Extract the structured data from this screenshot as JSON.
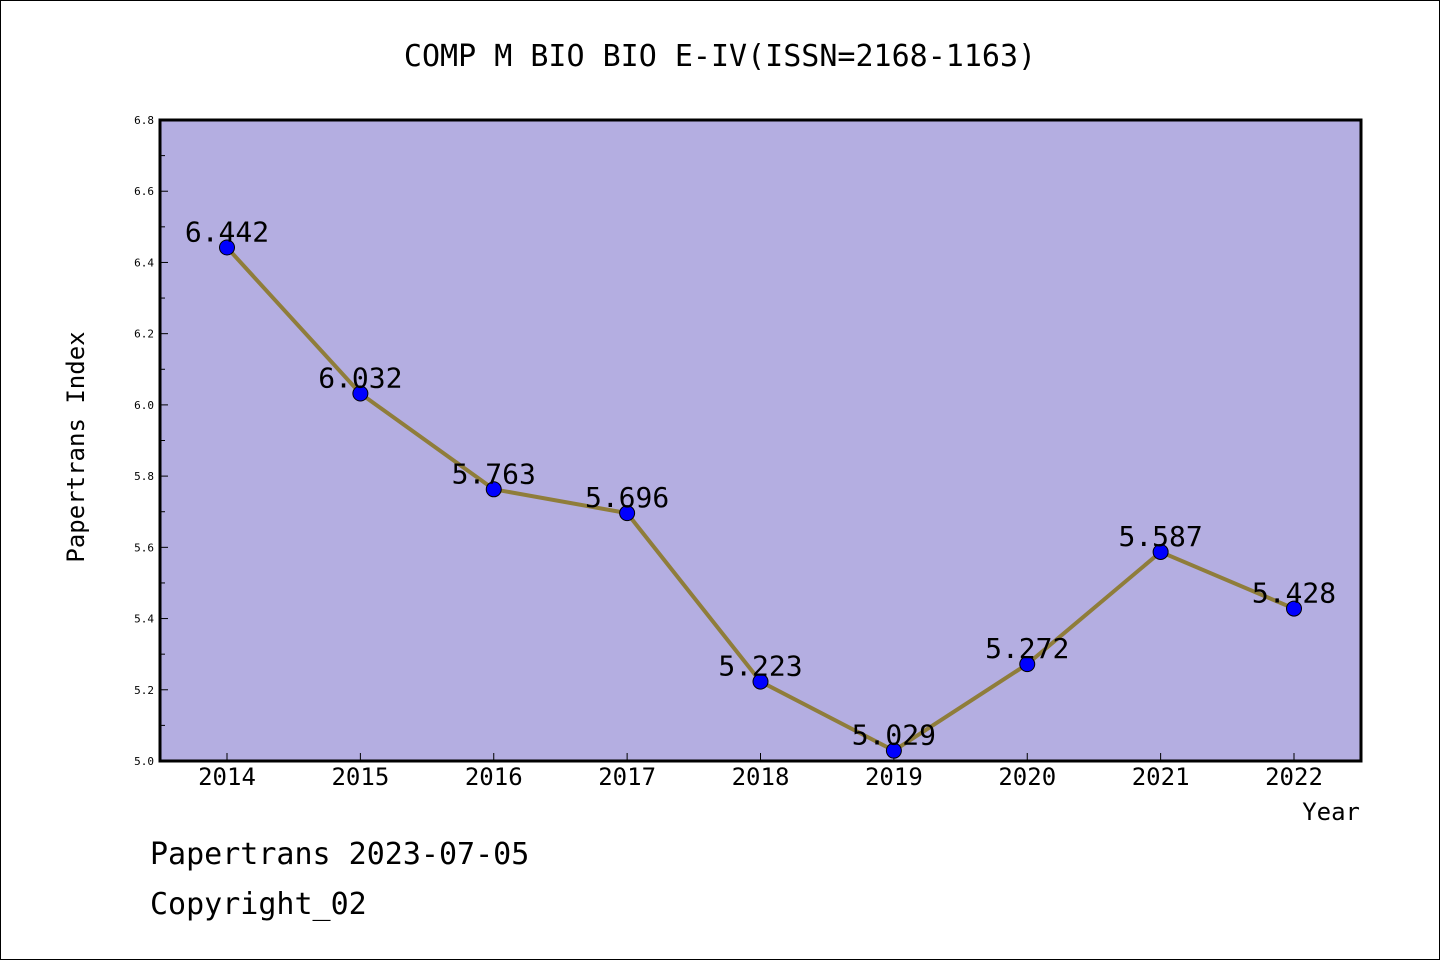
{
  "chart_data": {
    "type": "line",
    "title": "COMP M BIO BIO E-IV(ISSN=2168-1163)",
    "xlabel": "Year",
    "ylabel": "Papertrans Index",
    "x": [
      "2014",
      "2015",
      "2016",
      "2017",
      "2018",
      "2019",
      "2020",
      "2021",
      "2022"
    ],
    "series": [
      {
        "values": [
          6.442,
          6.032,
          5.763,
          5.696,
          5.223,
          5.029,
          5.272,
          5.587,
          5.428
        ],
        "data_labels": [
          "6.442",
          "6.032",
          "5.763",
          "5.696",
          "5.223",
          "5.029",
          "5.272",
          "5.587",
          "5.428"
        ]
      }
    ],
    "ylim": [
      5.0,
      6.8
    ],
    "yticks": [
      "5.0",
      "5.2",
      "5.4",
      "5.6",
      "5.8",
      "6.0",
      "6.2",
      "6.4",
      "6.6",
      "6.8"
    ],
    "grid": false,
    "colors": {
      "plot_background": "#b4aee1",
      "line": "#8f7d3a",
      "marker": "#0000ff"
    }
  },
  "footer": {
    "source": "Papertrans 2023-07-05",
    "copyright": "Copyright_02"
  }
}
